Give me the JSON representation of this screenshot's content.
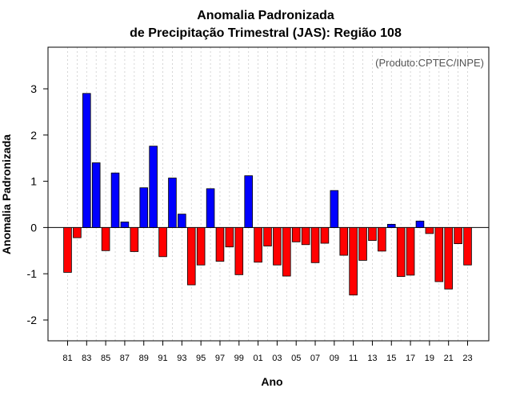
{
  "chart_data": {
    "type": "bar",
    "title": "Anomalia Padronizada",
    "subtitle": "de Precipitação Trimestral (JAS): Região 108",
    "xlabel": "Ano",
    "ylabel": "Anomalia Padronizada",
    "annotation": "(Produto:CPTEC/INPE)",
    "ylim": [
      -2.45,
      3.9
    ],
    "yticks": [
      -2,
      -1,
      0,
      1,
      2,
      3
    ],
    "grid": "vertical dotted",
    "categories": [
      "81",
      "82",
      "83",
      "84",
      "85",
      "86",
      "87",
      "88",
      "89",
      "90",
      "91",
      "92",
      "93",
      "94",
      "95",
      "96",
      "97",
      "98",
      "99",
      "00",
      "01",
      "02",
      "03",
      "04",
      "05",
      "06",
      "07",
      "08",
      "09",
      "10",
      "11",
      "12",
      "13",
      "14",
      "15",
      "16",
      "17",
      "18",
      "19",
      "20",
      "21",
      "22",
      "23"
    ],
    "xtick_labels": [
      "81",
      "83",
      "85",
      "87",
      "89",
      "91",
      "93",
      "95",
      "97",
      "99",
      "01",
      "03",
      "05",
      "07",
      "09",
      "11",
      "13",
      "15",
      "17",
      "19",
      "21",
      "23"
    ],
    "values": [
      -0.97,
      -0.22,
      2.9,
      1.4,
      -0.5,
      1.18,
      0.12,
      -0.52,
      0.86,
      1.76,
      -0.63,
      1.07,
      0.29,
      -1.24,
      -0.81,
      0.84,
      -0.73,
      -0.42,
      -1.02,
      1.12,
      -0.75,
      -0.4,
      -0.81,
      -1.05,
      -0.31,
      -0.37,
      -0.76,
      -0.34,
      0.8,
      -0.6,
      -1.46,
      -0.71,
      -0.28,
      -0.51,
      0.07,
      -1.06,
      -1.03,
      0.14,
      -0.13,
      -1.17,
      -1.33,
      -0.35,
      -0.81
    ],
    "colors": {
      "positive": "#0000ff",
      "negative": "#ff0000",
      "outline": "#000000",
      "grid": "#cccccc",
      "annotation": "#555555"
    }
  }
}
